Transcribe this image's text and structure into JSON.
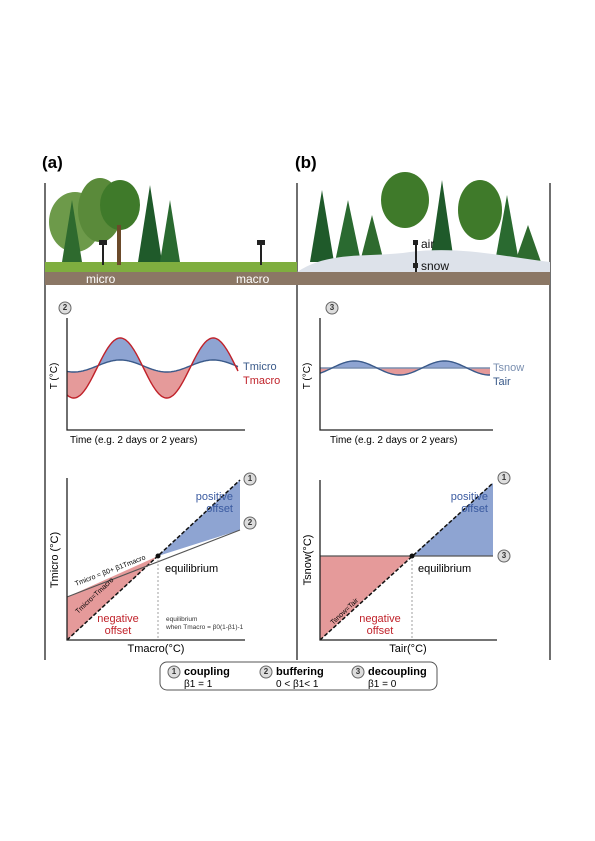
{
  "panel_a": {
    "label": "(a)",
    "landscape": {
      "left": "micro",
      "right": "macro"
    },
    "time_plot": {
      "badge": "2",
      "y_label": "T (°C)",
      "x_label": "Time (e.g. 2 days or 2 years)",
      "series": [
        "Tmicro",
        "Tmacro"
      ]
    },
    "relation_plot": {
      "badges": [
        "1",
        "2"
      ],
      "positive_offset": [
        "positive",
        "offset"
      ],
      "negative_offset": [
        "negative",
        "offset"
      ],
      "y_label": "Tmicro (°C)",
      "x_label": "Tmacro(°C)",
      "equation": "Tmicro = β0+ β1Tmacro",
      "identity": "Tmicro=Tmacro",
      "equilibrium": "equilibrium",
      "equilibrium_note": [
        "equilibrium",
        "when Tmacro = β0(1-β1)-1"
      ]
    }
  },
  "panel_b": {
    "label": "(b)",
    "landscape": {
      "upper": "air",
      "lower": "snow"
    },
    "time_plot": {
      "badge": "3",
      "y_label": "T (°C)",
      "x_label": "Time (e.g. 2 days or 2 years)",
      "series": [
        "Tsnow",
        "Tair"
      ]
    },
    "relation_plot": {
      "badges": [
        "1",
        "3"
      ],
      "positive_offset": [
        "positive",
        "offset"
      ],
      "negative_offset": [
        "negative",
        "offset"
      ],
      "y_label": "Tsnow(°C)",
      "x_label": "Tair(°C)",
      "identity": "Tsnow=Tair",
      "equilibrium": "equilibrium"
    }
  },
  "legend": [
    {
      "badge": "1",
      "title": "coupling",
      "condition": "β1 = 1"
    },
    {
      "badge": "2",
      "title": "buffering",
      "condition": "0 < β1< 1"
    },
    {
      "badge": "3",
      "title": "decoupling",
      "condition": "β1 = 0"
    }
  ]
}
